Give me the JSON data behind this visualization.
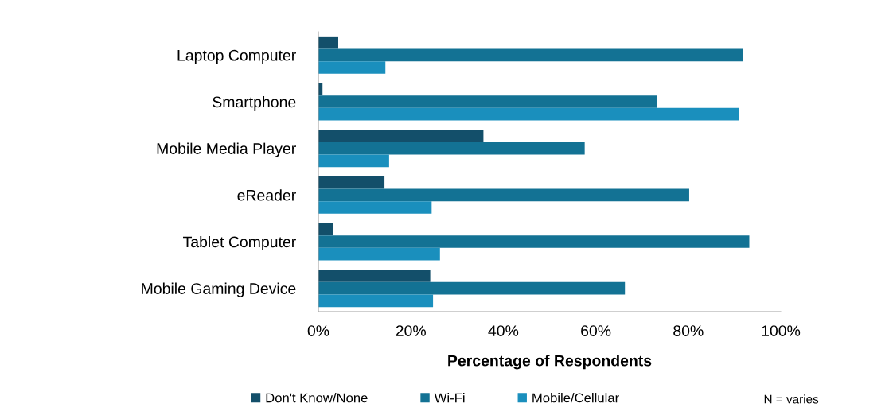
{
  "chart_data": {
    "type": "bar",
    "orientation": "horizontal",
    "xlabel": "Percentage of Respondents",
    "categories": [
      "Laptop Computer",
      "Smartphone",
      "Mobile Media Player",
      "eReader",
      "Tablet Computer",
      "Mobile Gaming Device"
    ],
    "series": [
      {
        "name": "Don't Know/None",
        "color": "#134f6a",
        "values": [
          4.3,
          0.9,
          35.7,
          14.3,
          3.2,
          24.2
        ]
      },
      {
        "name": "Wi-Fi",
        "color": "#137294",
        "values": [
          91.9,
          73.2,
          57.6,
          80.2,
          93.2,
          66.3
        ]
      },
      {
        "name": "Mobile/Cellular",
        "color": "#1a8fbd",
        "values": [
          14.5,
          91.0,
          15.3,
          24.5,
          26.3,
          24.8
        ]
      }
    ],
    "xlim": [
      0,
      100
    ],
    "xticks": [
      {
        "value": 0,
        "label": "0%"
      },
      {
        "value": 20,
        "label": "20%"
      },
      {
        "value": 40,
        "label": "40%"
      },
      {
        "value": 60,
        "label": "60%"
      },
      {
        "value": 80,
        "label": "80%"
      },
      {
        "value": 100,
        "label": "100%"
      }
    ],
    "grid": false,
    "legend": "bottom",
    "annotations": [
      "N = varies"
    ]
  }
}
